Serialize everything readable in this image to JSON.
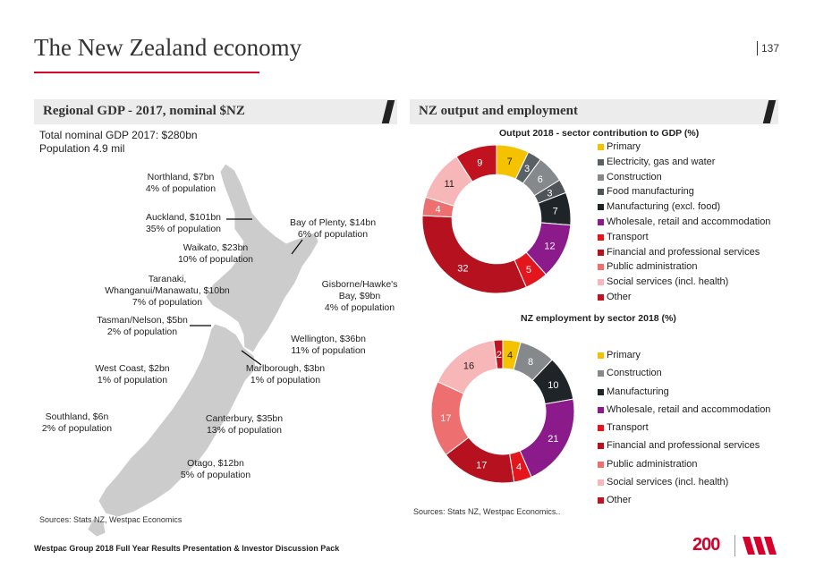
{
  "page": {
    "title": "The New Zealand economy",
    "page_number": "137",
    "footer": "Westpac Group 2018 Full Year Results Presentation & Investor Discussion Pack",
    "logo_text": "200",
    "accent": "#d5002b"
  },
  "left_panel": {
    "heading": "Regional GDP - 2017, nominal $NZ",
    "total_line": "Total nominal GDP 2017: $280bn",
    "population_line": "Population 4.9 mil",
    "source": "Sources: Stats NZ, Westpac Economics",
    "regions": [
      {
        "l1": "Northland, $7bn",
        "l2": "4% of population"
      },
      {
        "l1": "Auckland, $101bn",
        "l2": "35% of population"
      },
      {
        "l1": "Bay of Plenty, $14bn",
        "l2": "6% of population"
      },
      {
        "l1": "Waikato, $23bn",
        "l2": "10% of population"
      },
      {
        "l1": "Taranaki,",
        "l2": "Whanganui/Manawatu, $10bn",
        "l3": "7% of population"
      },
      {
        "l1": "Gisborne/Hawke's",
        "l2": "Bay, $9bn",
        "l3": "4% of population"
      },
      {
        "l1": "Tasman/Nelson, $5bn",
        "l2": "2% of population"
      },
      {
        "l1": "Wellington, $36bn",
        "l2": "11% of population"
      },
      {
        "l1": "West Coast, $2bn",
        "l2": "1% of population"
      },
      {
        "l1": "Marlborough, $3bn",
        "l2": "1% of population"
      },
      {
        "l1": "Southland, $6n",
        "l2": "2% of population"
      },
      {
        "l1": "Canterbury, $35bn",
        "l2": "13% of population"
      },
      {
        "l1": "Otago, $12bn",
        "l2": "5% of population"
      }
    ]
  },
  "right_panel": {
    "heading": "NZ output and employment",
    "source": "Sources: Stats NZ, Westpac Economics.."
  },
  "chart_data": [
    {
      "type": "pie",
      "title": "Output 2018 - sector contribution to GDP (%)",
      "categories": [
        "Primary",
        "Electricity, gas and water",
        "Construction",
        "Food manufacturing",
        "Manufacturing (excl. food)",
        "Wholesale, retail and accommodation",
        "Transport",
        "Financial and professional services",
        "Public administration",
        "Social services (incl. health)",
        "Other"
      ],
      "values": [
        7,
        3,
        6,
        3,
        7,
        12,
        5,
        32,
        4,
        11,
        9
      ],
      "colors": [
        "#f5c200",
        "#596066",
        "#85898c",
        "#4f5459",
        "#1f2429",
        "#8b1a8b",
        "#e4161d",
        "#b5111e",
        "#ee6f6f",
        "#f7b7b9",
        "#c1121f"
      ],
      "donut": true,
      "legend_position": "right"
    },
    {
      "type": "pie",
      "title": "NZ employment by sector 2018 (%)",
      "categories": [
        "Primary",
        "Construction",
        "Manufacturing",
        "Wholesale, retail and accommodation",
        "Transport",
        "Financial and professional services",
        "Public administration",
        "Social services (incl. health)",
        "Other"
      ],
      "values": [
        4,
        8,
        10,
        21,
        4,
        17,
        17,
        16,
        2
      ],
      "colors": [
        "#f5c200",
        "#85898c",
        "#1f2429",
        "#8b1a8b",
        "#e4161d",
        "#b5111e",
        "#ee6f6f",
        "#f7b7b9",
        "#c1121f"
      ],
      "donut": true,
      "legend_position": "right"
    }
  ]
}
